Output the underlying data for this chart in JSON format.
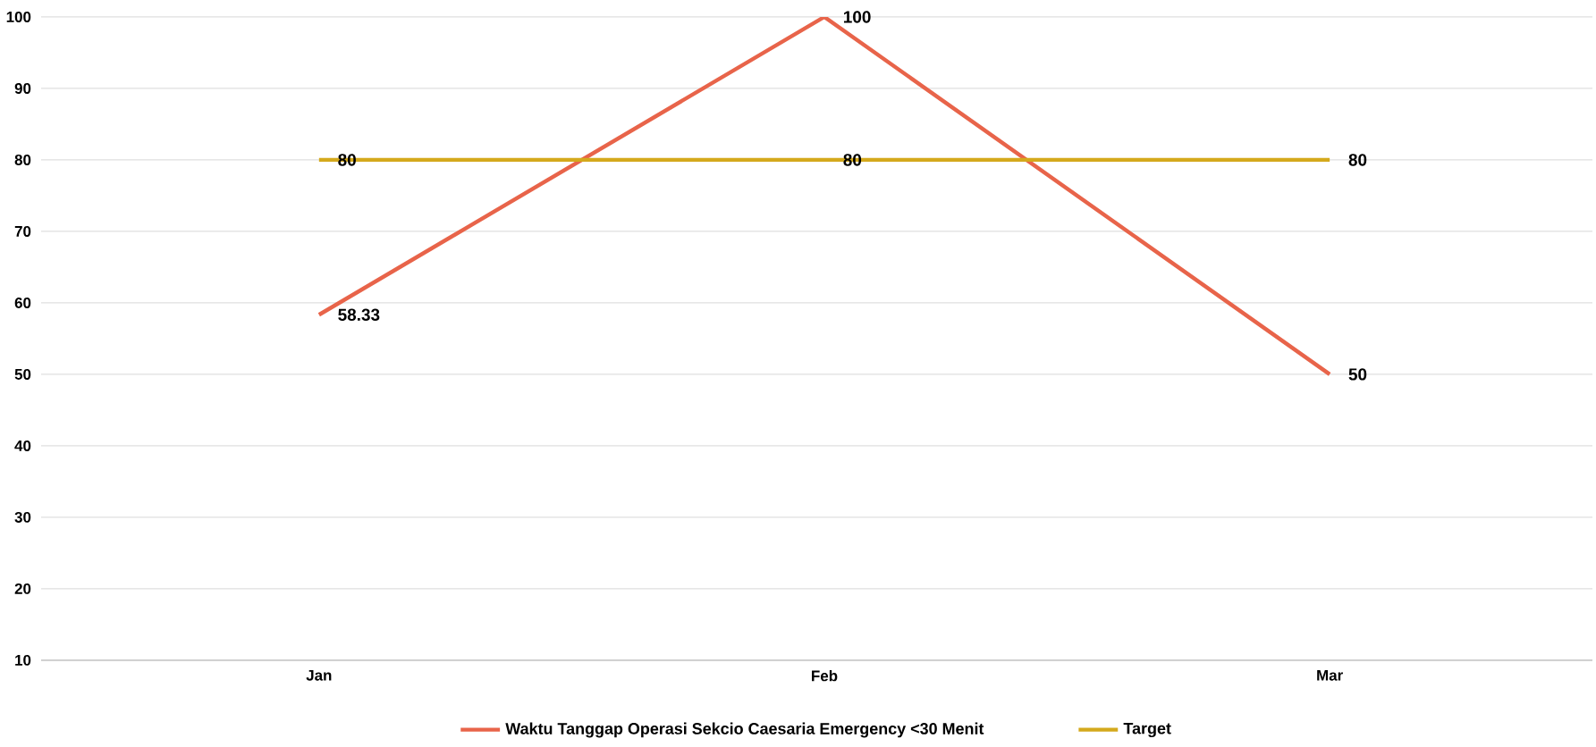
{
  "chart_data": {
    "type": "line",
    "categories": [
      "Jan",
      "Feb",
      "Mar"
    ],
    "series": [
      {
        "name": "Waktu Tanggap Operasi Sekcio Caesaria Emergency <30 Menit",
        "color": "#e8644a",
        "values": [
          58.33,
          100,
          50
        ]
      },
      {
        "name": "Target",
        "color": "#d4a91c",
        "values": [
          80,
          80,
          80
        ]
      }
    ],
    "ylim": [
      10,
      100
    ],
    "yticks": [
      10,
      20,
      30,
      40,
      50,
      60,
      70,
      80,
      90,
      100
    ],
    "grid": "y",
    "legend": "bottom",
    "data_labels": true,
    "marker": "none",
    "line_style": "solid"
  }
}
